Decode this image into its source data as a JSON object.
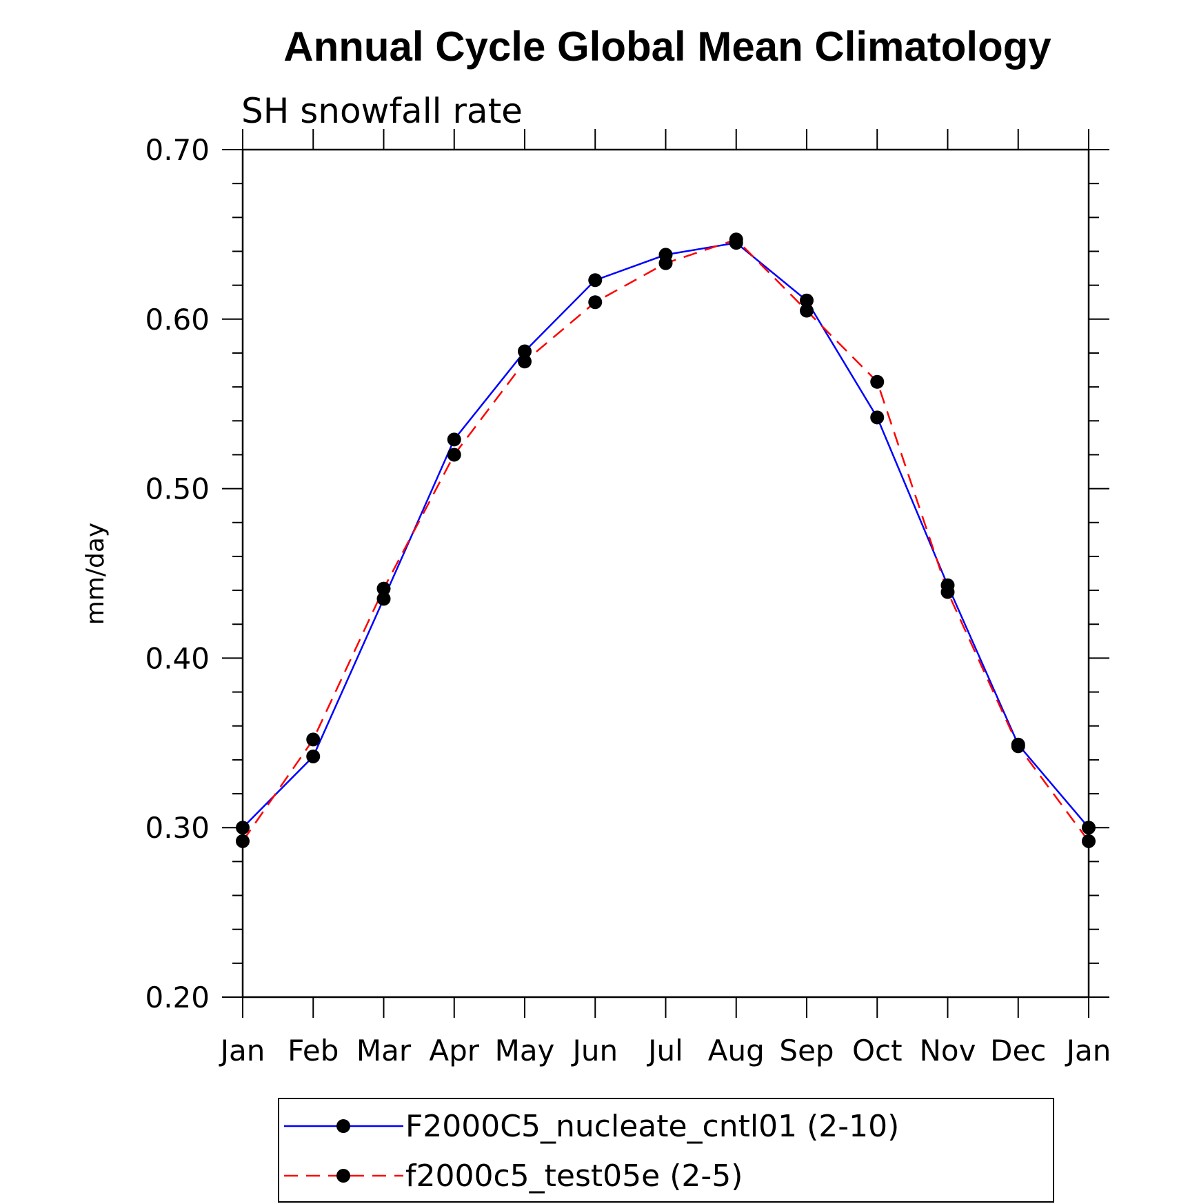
{
  "chart_data": {
    "type": "line",
    "title": "Annual Cycle Global Mean Climatology",
    "subtitle": "SH snowfall rate",
    "ylabel": "mm/day",
    "xlabel": "",
    "categories": [
      "Jan",
      "Feb",
      "Mar",
      "Apr",
      "May",
      "Jun",
      "Jul",
      "Aug",
      "Sep",
      "Oct",
      "Nov",
      "Dec",
      "Jan"
    ],
    "ylim": [
      0.2,
      0.7
    ],
    "yticks": [
      "0.20",
      "0.30",
      "0.40",
      "0.50",
      "0.60",
      "0.70"
    ],
    "grid": false,
    "legend_position": "bottom",
    "series": [
      {
        "name": "F2000C5_nucleate_cntl01 (2-10)",
        "color": "#0000ff",
        "line_style": "solid",
        "marker": "filled-circle",
        "values": [
          0.3,
          0.342,
          0.435,
          0.529,
          0.581,
          0.623,
          0.638,
          0.645,
          0.611,
          0.542,
          0.443,
          0.349,
          0.3
        ]
      },
      {
        "name": "f2000c5_test05e (2-5)",
        "color": "#ff0000",
        "line_style": "dashed",
        "marker": "filled-circle",
        "values": [
          0.292,
          0.352,
          0.441,
          0.52,
          0.575,
          0.61,
          0.633,
          0.647,
          0.605,
          0.563,
          0.439,
          0.348,
          0.292
        ]
      }
    ]
  }
}
